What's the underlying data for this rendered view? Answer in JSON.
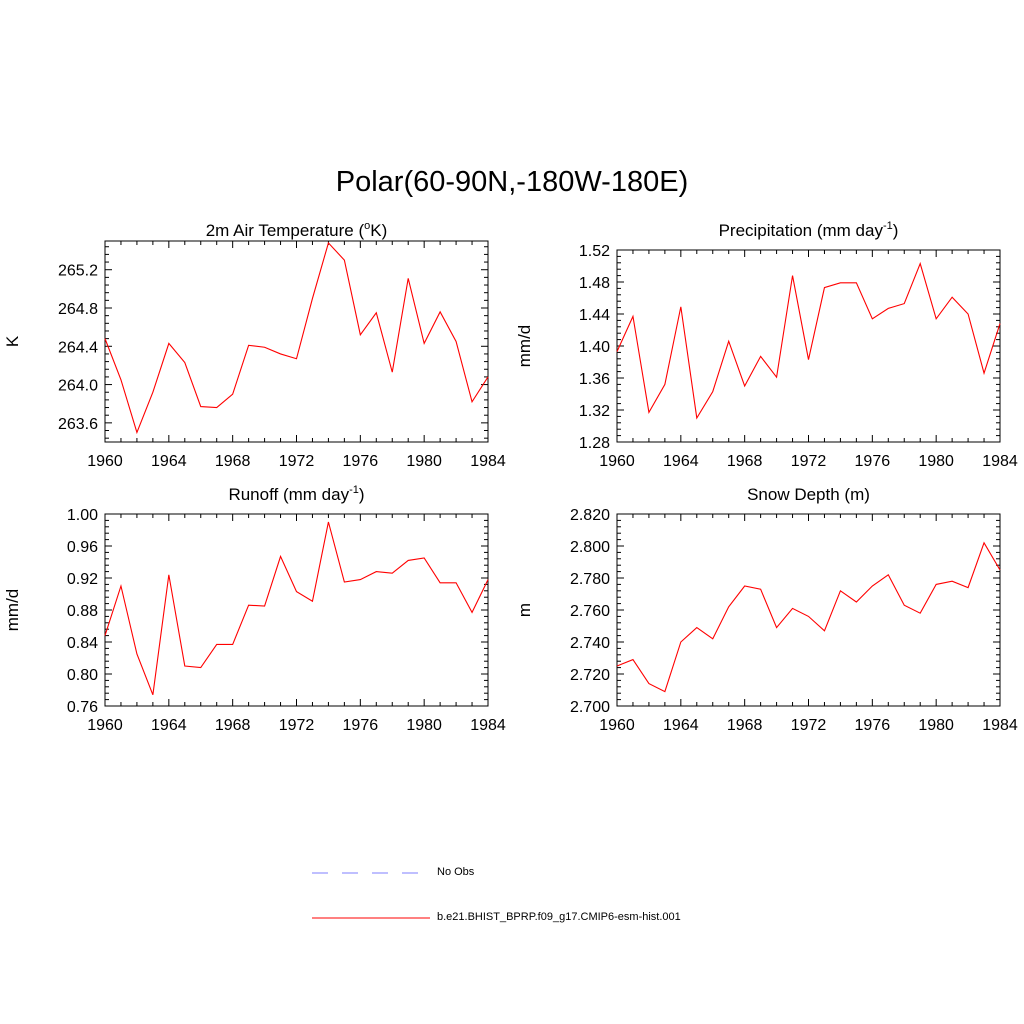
{
  "page_title": "Polar(60-90N,-180W-180E)",
  "line_color": "#ff0000",
  "obs_color": "#9999ff",
  "legend": {
    "obs_label": "No Obs",
    "model_label": "b.e21.BHIST_BPRP.f09_g17.CMIP6-esm-hist.001"
  },
  "chart_data": [
    {
      "type": "line",
      "title": "2m Air Temperature (",
      "title_sup": "o",
      "title_suffix": "K)",
      "ylabel": "K",
      "x": [
        1960,
        1961,
        1962,
        1963,
        1964,
        1965,
        1966,
        1967,
        1968,
        1969,
        1970,
        1971,
        1972,
        1973,
        1974,
        1975,
        1976,
        1977,
        1978,
        1979,
        1980,
        1981,
        1982,
        1983,
        1984
      ],
      "series": [
        {
          "values": [
            264.48,
            264.05,
            263.5,
            263.92,
            264.43,
            264.23,
            263.77,
            263.76,
            263.9,
            264.41,
            264.39,
            264.32,
            264.27,
            264.9,
            265.48,
            265.3,
            264.52,
            264.75,
            264.13,
            265.11,
            264.43,
            264.76,
            264.45,
            263.82,
            264.08
          ]
        }
      ],
      "xlim": [
        1960,
        1984
      ],
      "ylim": [
        263.4,
        265.5
      ],
      "xticks": [
        "1960",
        "1964",
        "1968",
        "1972",
        "1976",
        "1980",
        "1984"
      ],
      "yticks": [
        "263.6",
        "264.0",
        "264.4",
        "264.8",
        "265.2"
      ]
    },
    {
      "type": "line",
      "title": "Precipitation (mm day",
      "title_sup": "-1",
      "title_suffix": ")",
      "ylabel": "mm/d",
      "x": [
        1960,
        1961,
        1962,
        1963,
        1964,
        1965,
        1966,
        1967,
        1968,
        1969,
        1970,
        1971,
        1972,
        1973,
        1974,
        1975,
        1976,
        1977,
        1978,
        1979,
        1980,
        1981,
        1982,
        1983,
        1984
      ],
      "series": [
        {
          "values": [
            1.393,
            1.437,
            1.317,
            1.352,
            1.449,
            1.31,
            1.343,
            1.406,
            1.35,
            1.387,
            1.361,
            1.488,
            1.383,
            1.473,
            1.479,
            1.479,
            1.434,
            1.447,
            1.453,
            1.503,
            1.434,
            1.461,
            1.44,
            1.366,
            1.428
          ]
        }
      ],
      "xlim": [
        1960,
        1984
      ],
      "ylim": [
        1.28,
        1.52
      ],
      "xticks": [
        "1960",
        "1964",
        "1968",
        "1972",
        "1976",
        "1980",
        "1984"
      ],
      "yticks": [
        "1.28",
        "1.32",
        "1.36",
        "1.40",
        "1.44",
        "1.48",
        "1.52"
      ]
    },
    {
      "type": "line",
      "title": "Runoff (mm day",
      "title_sup": "-1",
      "title_suffix": ")",
      "ylabel": "mm/d",
      "x": [
        1960,
        1961,
        1962,
        1963,
        1964,
        1965,
        1966,
        1967,
        1968,
        1969,
        1970,
        1971,
        1972,
        1973,
        1974,
        1975,
        1976,
        1977,
        1978,
        1979,
        1980,
        1981,
        1982,
        1983,
        1984
      ],
      "series": [
        {
          "values": [
            0.848,
            0.91,
            0.825,
            0.774,
            0.924,
            0.81,
            0.808,
            0.837,
            0.837,
            0.886,
            0.885,
            0.947,
            0.903,
            0.891,
            0.99,
            0.915,
            0.918,
            0.928,
            0.926,
            0.942,
            0.945,
            0.914,
            0.914,
            0.877,
            0.918
          ]
        }
      ],
      "xlim": [
        1960,
        1984
      ],
      "ylim": [
        0.76,
        1.0
      ],
      "xticks": [
        "1960",
        "1964",
        "1968",
        "1972",
        "1976",
        "1980",
        "1984"
      ],
      "yticks": [
        "0.76",
        "0.80",
        "0.84",
        "0.88",
        "0.92",
        "0.96",
        "1.00"
      ]
    },
    {
      "type": "line",
      "title": "Snow Depth (m)",
      "title_sup": "",
      "title_suffix": "",
      "ylabel": "m",
      "x": [
        1960,
        1961,
        1962,
        1963,
        1964,
        1965,
        1966,
        1967,
        1968,
        1969,
        1970,
        1971,
        1972,
        1973,
        1974,
        1975,
        1976,
        1977,
        1978,
        1979,
        1980,
        1981,
        1982,
        1983,
        1984
      ],
      "series": [
        {
          "values": [
            2.725,
            2.729,
            2.714,
            2.709,
            2.74,
            2.749,
            2.742,
            2.762,
            2.775,
            2.773,
            2.749,
            2.761,
            2.756,
            2.747,
            2.772,
            2.765,
            2.775,
            2.782,
            2.763,
            2.758,
            2.776,
            2.778,
            2.774,
            2.802,
            2.785
          ]
        }
      ],
      "xlim": [
        1960,
        1984
      ],
      "ylim": [
        2.7,
        2.82
      ],
      "xticks": [
        "1960",
        "1964",
        "1968",
        "1972",
        "1976",
        "1980",
        "1984"
      ],
      "yticks": [
        "2.700",
        "2.720",
        "2.740",
        "2.760",
        "2.780",
        "2.800",
        "2.820"
      ]
    }
  ]
}
